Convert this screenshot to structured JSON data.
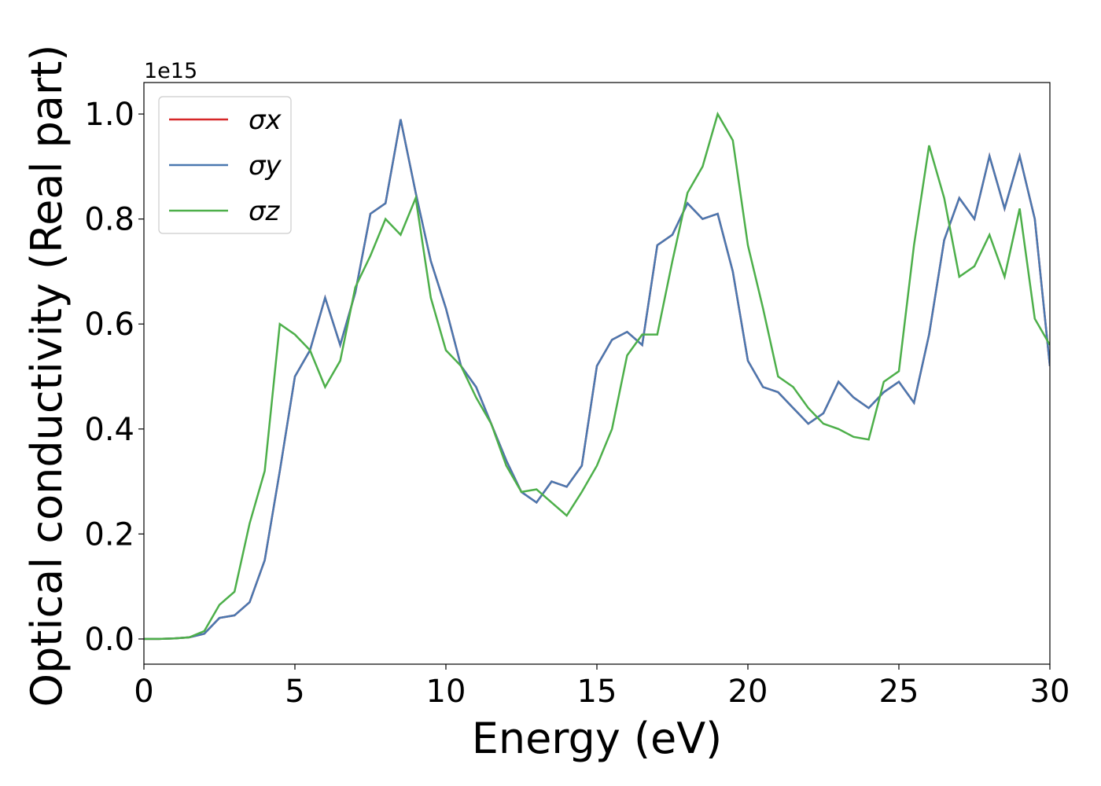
{
  "chart_data": {
    "type": "line",
    "xlabel": "Energy (eV)",
    "ylabel": "Optical conductivity (Real part)",
    "y_offset_label": "1e15",
    "x": [
      0,
      0.5,
      1,
      1.5,
      2,
      2.5,
      3,
      3.5,
      4,
      4.5,
      5,
      5.5,
      6,
      6.5,
      7,
      7.5,
      8,
      8.5,
      9,
      9.5,
      10,
      10.5,
      11,
      11.5,
      12,
      12.5,
      13,
      13.5,
      14,
      14.5,
      15,
      15.5,
      16,
      16.5,
      17,
      17.5,
      18,
      18.5,
      19,
      19.5,
      20,
      20.5,
      21,
      21.5,
      22,
      22.5,
      23,
      23.5,
      24,
      24.5,
      25,
      25.5,
      26,
      26.5,
      27,
      27.5,
      28,
      28.5,
      29,
      29.5,
      30
    ],
    "series": [
      {
        "name": "σx",
        "color": "#d62728",
        "values": [
          0,
          0,
          0.001,
          0.003,
          0.01,
          0.04,
          0.045,
          0.07,
          0.15,
          0.32,
          0.5,
          0.55,
          0.65,
          0.56,
          0.66,
          0.81,
          0.83,
          0.99,
          0.85,
          0.72,
          0.63,
          0.52,
          0.48,
          0.41,
          0.34,
          0.28,
          0.26,
          0.3,
          0.29,
          0.33,
          0.52,
          0.57,
          0.585,
          0.56,
          0.75,
          0.77,
          0.83,
          0.8,
          0.81,
          0.7,
          0.53,
          0.48,
          0.47,
          0.44,
          0.41,
          0.43,
          0.49,
          0.46,
          0.44,
          0.47,
          0.49,
          0.45,
          0.58,
          0.76,
          0.84,
          0.8,
          0.92,
          0.82,
          0.92,
          0.8,
          0.52
        ]
      },
      {
        "name": "σy",
        "color": "#4a78b0",
        "values": [
          0,
          0,
          0.001,
          0.003,
          0.01,
          0.04,
          0.045,
          0.07,
          0.15,
          0.32,
          0.5,
          0.55,
          0.65,
          0.56,
          0.66,
          0.81,
          0.83,
          0.99,
          0.85,
          0.72,
          0.63,
          0.52,
          0.48,
          0.41,
          0.34,
          0.28,
          0.26,
          0.3,
          0.29,
          0.33,
          0.52,
          0.57,
          0.585,
          0.56,
          0.75,
          0.77,
          0.83,
          0.8,
          0.81,
          0.7,
          0.53,
          0.48,
          0.47,
          0.44,
          0.41,
          0.43,
          0.49,
          0.46,
          0.44,
          0.47,
          0.49,
          0.45,
          0.58,
          0.76,
          0.84,
          0.8,
          0.92,
          0.82,
          0.92,
          0.8,
          0.52
        ]
      },
      {
        "name": "σz",
        "color": "#4daf4a",
        "values": [
          0,
          0,
          0.001,
          0.003,
          0.015,
          0.065,
          0.09,
          0.22,
          0.32,
          0.6,
          0.58,
          0.55,
          0.48,
          0.53,
          0.67,
          0.73,
          0.8,
          0.77,
          0.84,
          0.65,
          0.55,
          0.52,
          0.46,
          0.41,
          0.33,
          0.28,
          0.285,
          0.26,
          0.235,
          0.28,
          0.33,
          0.4,
          0.54,
          0.58,
          0.58,
          0.72,
          0.85,
          0.9,
          1.0,
          0.95,
          0.75,
          0.63,
          0.5,
          0.48,
          0.44,
          0.41,
          0.4,
          0.385,
          0.38,
          0.49,
          0.51,
          0.75,
          0.94,
          0.84,
          0.69,
          0.71,
          0.77,
          0.69,
          0.82,
          0.61,
          0.56
        ]
      }
    ],
    "xlim": [
      0,
      30
    ],
    "ylim": [
      -0.048,
      1.06
    ],
    "xticks": [
      0,
      5,
      10,
      15,
      20,
      25,
      30
    ],
    "yticks": [
      {
        "value": 0,
        "label": "0.0"
      },
      {
        "value": 0.2,
        "label": "0.2"
      },
      {
        "value": 0.4,
        "label": "0.4"
      },
      {
        "value": 0.6,
        "label": "0.6"
      },
      {
        "value": 0.8,
        "label": "0.8"
      },
      {
        "value": 1.0,
        "label": "1.0"
      }
    ],
    "grid": false,
    "legend": "upper left"
  }
}
